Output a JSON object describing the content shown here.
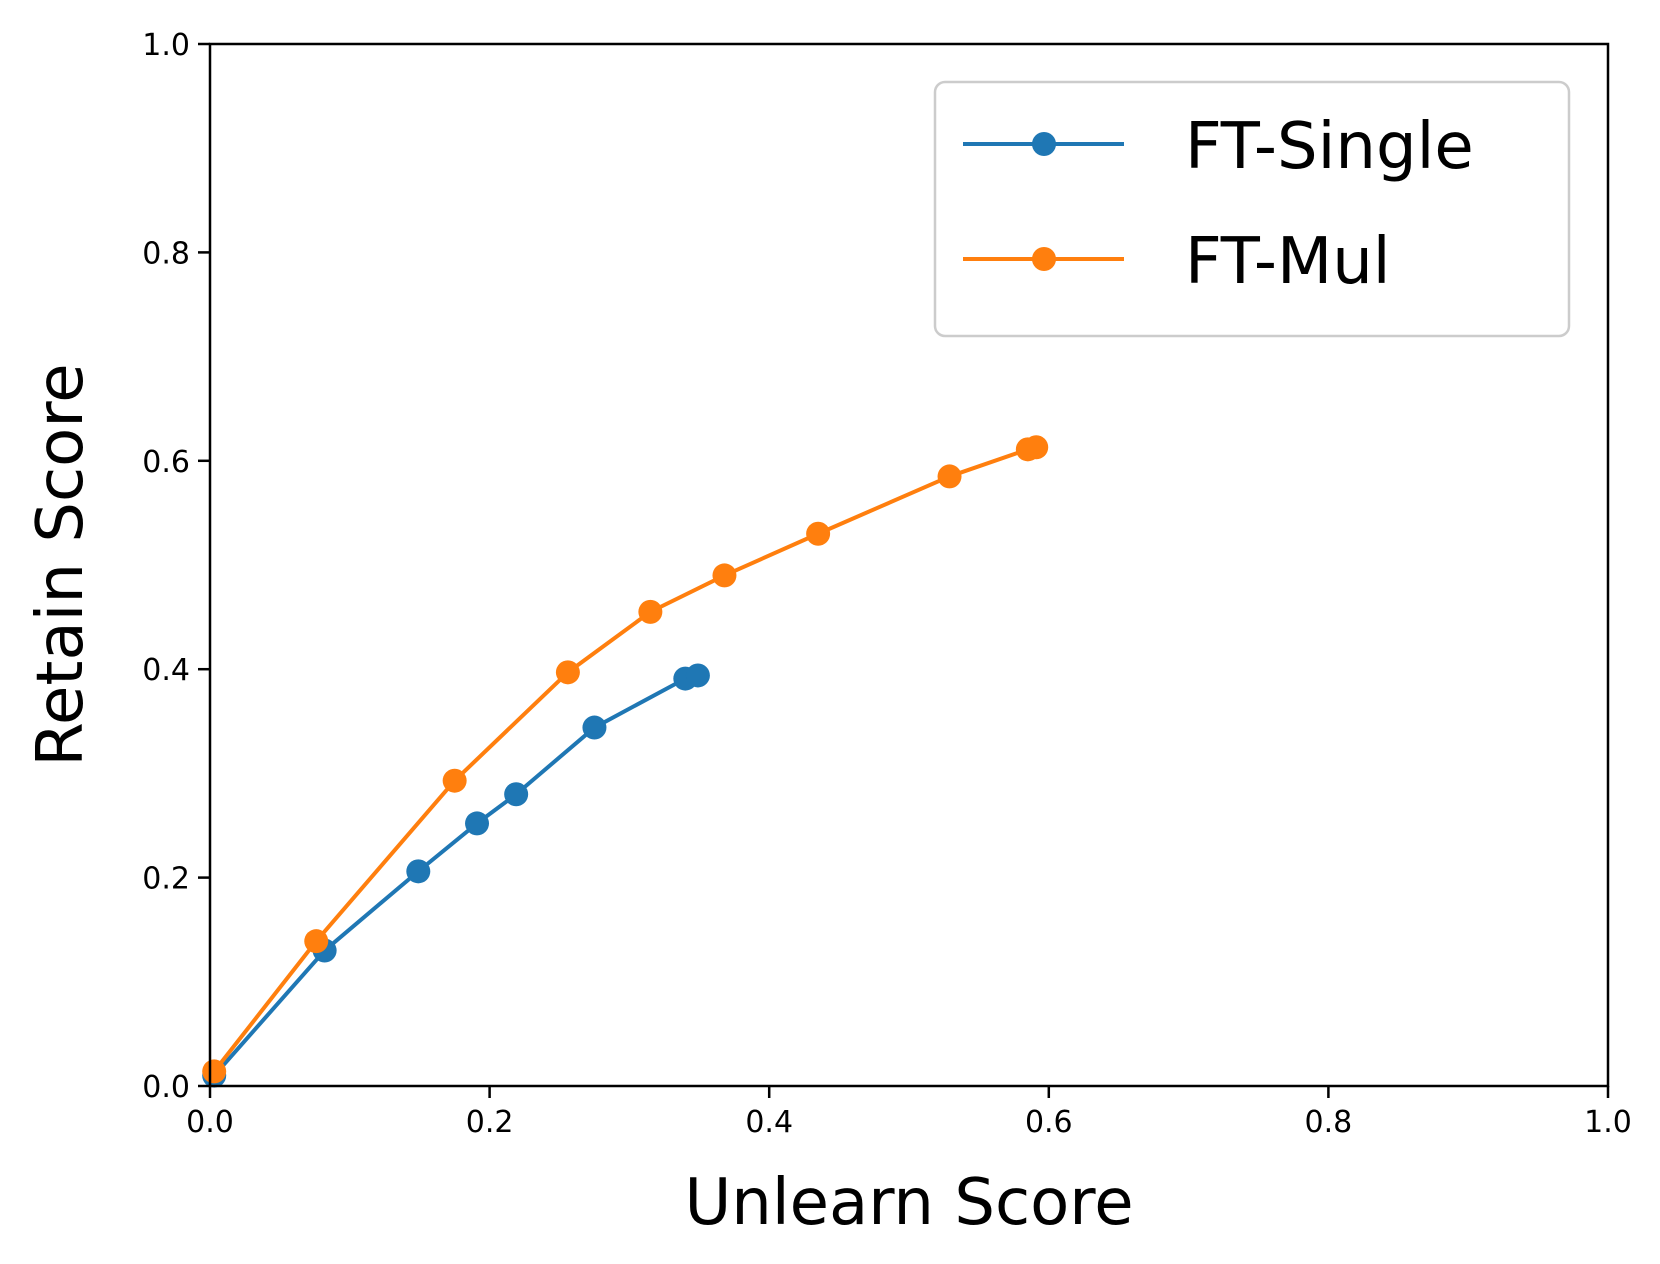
{
  "chart_data": {
    "type": "line",
    "xlabel": "Unlearn Score",
    "ylabel": "Retain Score",
    "xlim": [
      0,
      1
    ],
    "ylim": [
      0,
      1
    ],
    "xticks": [
      "0.0",
      "0.2",
      "0.4",
      "0.6",
      "0.8",
      "1.0"
    ],
    "yticks": [
      "0.0",
      "0.2",
      "0.4",
      "0.6",
      "0.8",
      "1.0"
    ],
    "grid": false,
    "legend_position": "top-right",
    "series": [
      {
        "name": "FT-Single",
        "color": "#1f77b4",
        "x": [
          0.003,
          0.082,
          0.149,
          0.191,
          0.219,
          0.275,
          0.34,
          0.349
        ],
        "y": [
          0.01,
          0.13,
          0.206,
          0.252,
          0.28,
          0.344,
          0.391,
          0.394
        ]
      },
      {
        "name": "FT-Mul",
        "color": "#ff7f0e",
        "x": [
          0.003,
          0.076,
          0.175,
          0.256,
          0.315,
          0.368,
          0.435,
          0.529,
          0.585,
          0.591
        ],
        "y": [
          0.014,
          0.139,
          0.293,
          0.397,
          0.455,
          0.49,
          0.53,
          0.585,
          0.611,
          0.613
        ]
      }
    ]
  }
}
